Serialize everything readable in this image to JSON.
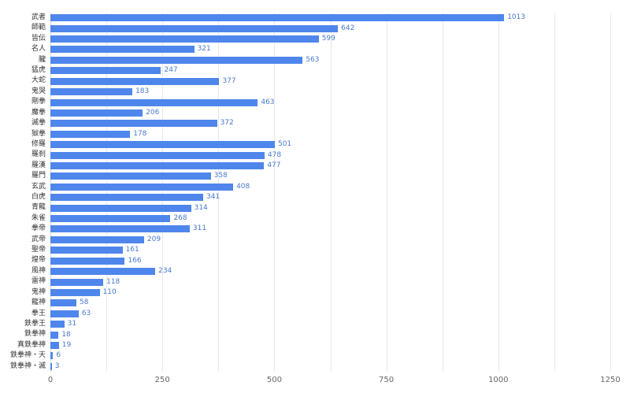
{
  "chart_data": {
    "type": "bar",
    "orientation": "horizontal",
    "title": "",
    "xlabel": "",
    "ylabel": "",
    "categories": [
      "武者",
      "師範",
      "皆伝",
      "名人",
      "朧",
      "猛虎",
      "大蛇",
      "鬼哭",
      "剛拳",
      "魔拳",
      "滅拳",
      "獄拳",
      "修羅",
      "羅刹",
      "羅漢",
      "羅門",
      "玄武",
      "白虎",
      "青龍",
      "朱雀",
      "拳帝",
      "武帝",
      "聖帝",
      "煌帝",
      "風神",
      "雷神",
      "鬼神",
      "龍神",
      "拳王",
      "鉄拳王",
      "鉄拳神",
      "真鉄拳神",
      "鉄拳神・天",
      "鉄拳神・滅"
    ],
    "values": [
      1013,
      642,
      599,
      321,
      563,
      247,
      377,
      183,
      463,
      206,
      372,
      178,
      501,
      478,
      477,
      358,
      408,
      341,
      314,
      268,
      311,
      209,
      161,
      166,
      234,
      118,
      110,
      58,
      63,
      31,
      18,
      19,
      6,
      3
    ],
    "xlim": [
      0,
      1250
    ],
    "x_ticks": [
      "0",
      "250",
      "500",
      "750",
      "1000",
      "1250"
    ],
    "x_tick_values": [
      0,
      250,
      500,
      750,
      1000,
      1250
    ],
    "grid_interval": 125,
    "grid": true,
    "legend": "none",
    "colors": {
      "bar": "#4e86ec",
      "value_label": "#4979d1",
      "grid": "#e8e8e8",
      "zero_line": "#d9d9d9",
      "category_label": "#333333",
      "axis_tick_label": "#666666",
      "background": "#ffffff"
    }
  }
}
